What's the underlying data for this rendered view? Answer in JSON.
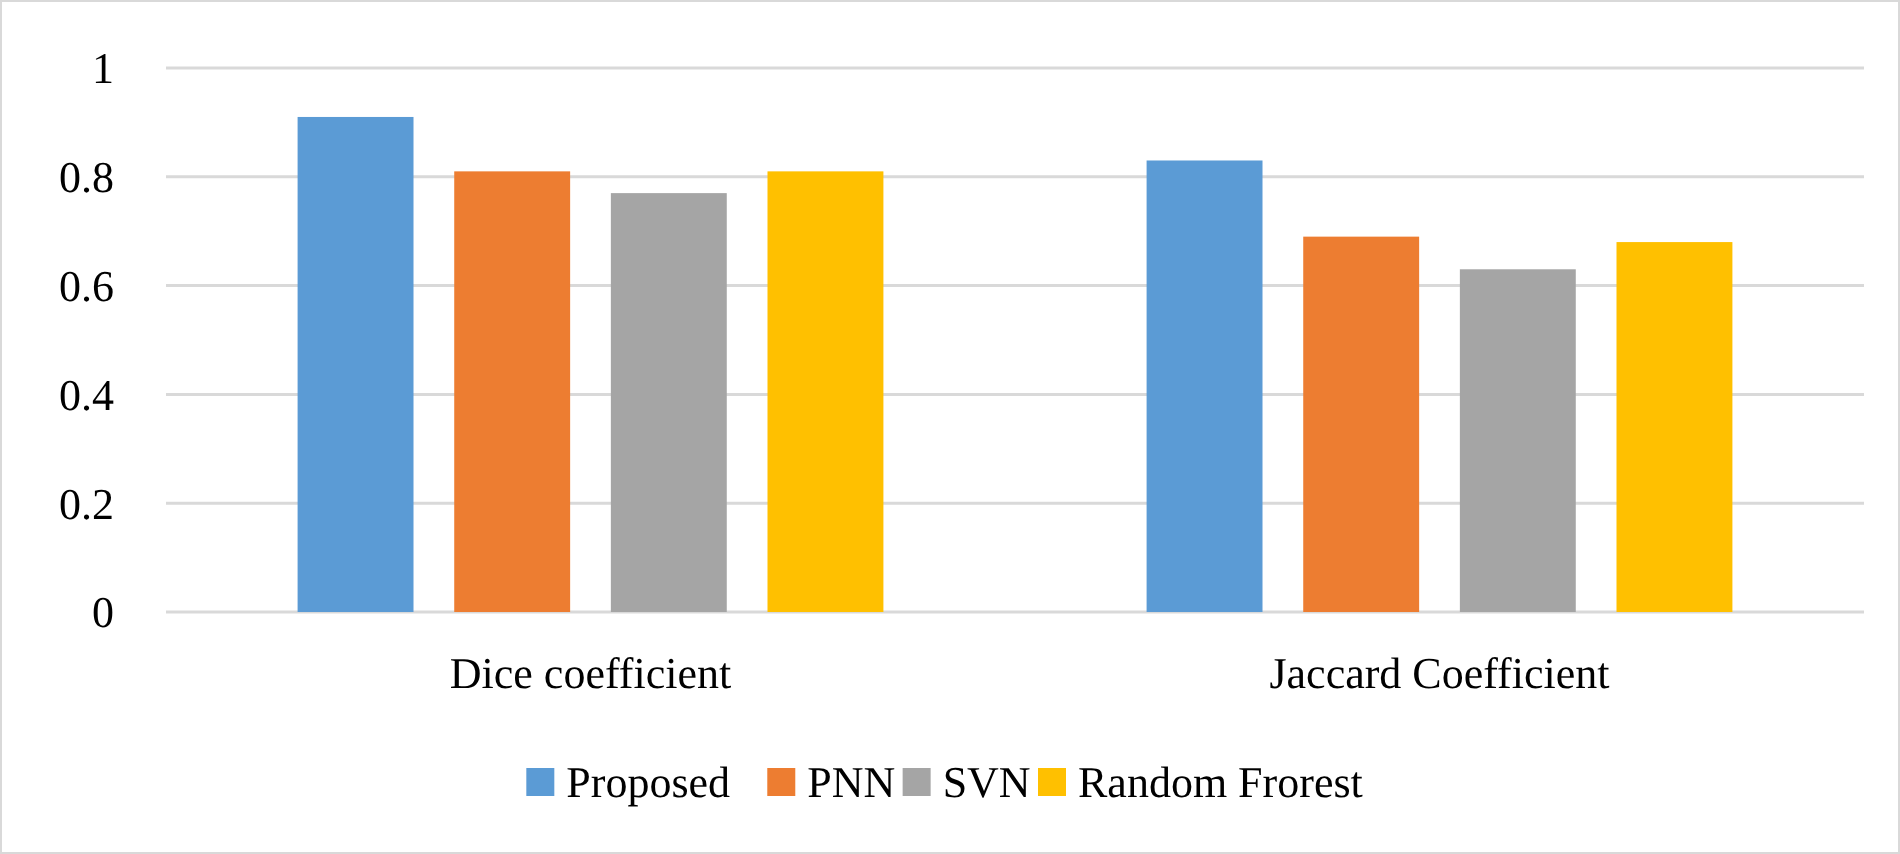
{
  "chart_data": {
    "type": "bar",
    "categories": [
      "Dice coefficient",
      "Jaccard Coefficient"
    ],
    "series": [
      {
        "name": "Proposed",
        "color": "#5b9bd5",
        "values": [
          0.91,
          0.83
        ]
      },
      {
        "name": "PNN",
        "color": "#ed7d31",
        "values": [
          0.81,
          0.69
        ]
      },
      {
        "name": "SVN",
        "color": "#a5a5a5",
        "values": [
          0.77,
          0.63
        ]
      },
      {
        "name": "Random Frorest",
        "color": "#ffc000",
        "values": [
          0.81,
          0.68
        ]
      }
    ],
    "ylim": [
      0,
      1
    ],
    "yticks": [
      0,
      0.2,
      0.4,
      0.6,
      0.8,
      1
    ],
    "grid": "y",
    "legend": "bottom"
  }
}
